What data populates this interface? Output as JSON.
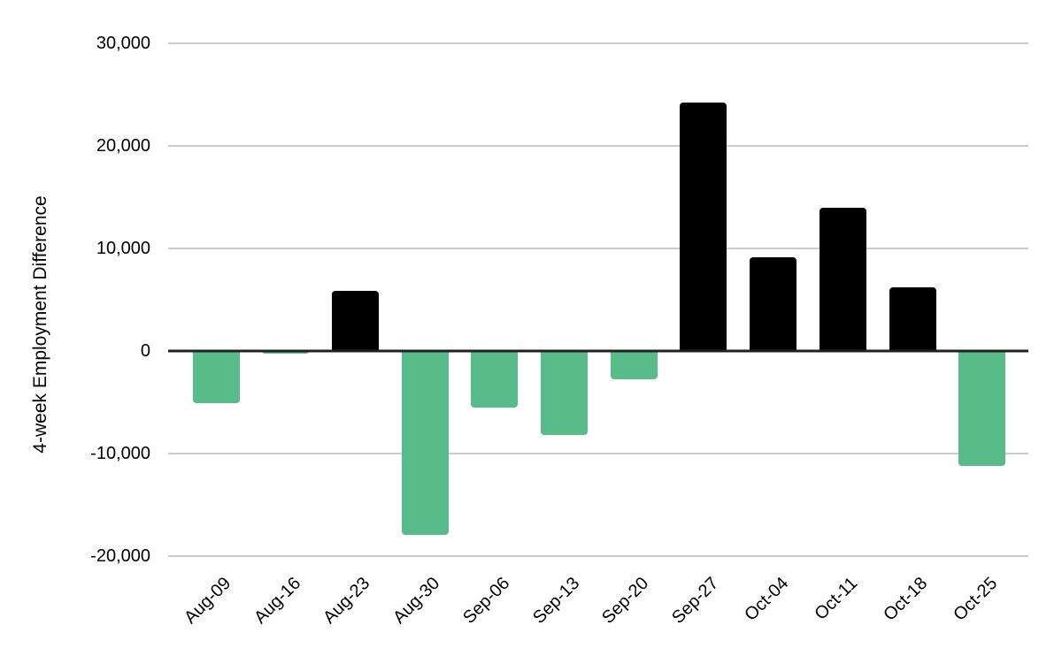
{
  "chart_data": {
    "type": "bar",
    "title": "",
    "xlabel": "",
    "ylabel": "4-week Employment Difference",
    "categories": [
      "Aug-09",
      "Aug-16",
      "Aug-23",
      "Aug-30",
      "Sep-06",
      "Sep-13",
      "Sep-20",
      "Sep-27",
      "Oct-04",
      "Oct-11",
      "Oct-18",
      "Oct-25"
    ],
    "values": [
      -5100,
      -300,
      5900,
      -17900,
      -5500,
      -8200,
      -2800,
      24200,
      9100,
      14000,
      6200,
      -11200
    ],
    "ylim": [
      -20000,
      30000
    ],
    "ytick_values": [
      30000,
      20000,
      10000,
      0,
      -10000,
      -20000
    ],
    "ytick_labels": [
      "30,000",
      "20,000",
      "10,000",
      "0",
      "-10,000",
      "-20,000"
    ],
    "grid": true,
    "legend": false,
    "colors": {
      "positive_bar": "#000000",
      "negative_bar": "#57bb8a",
      "gridline": "#cccccc",
      "zero_line": "#212121",
      "text": "#000000",
      "background": "#ffffff"
    }
  }
}
